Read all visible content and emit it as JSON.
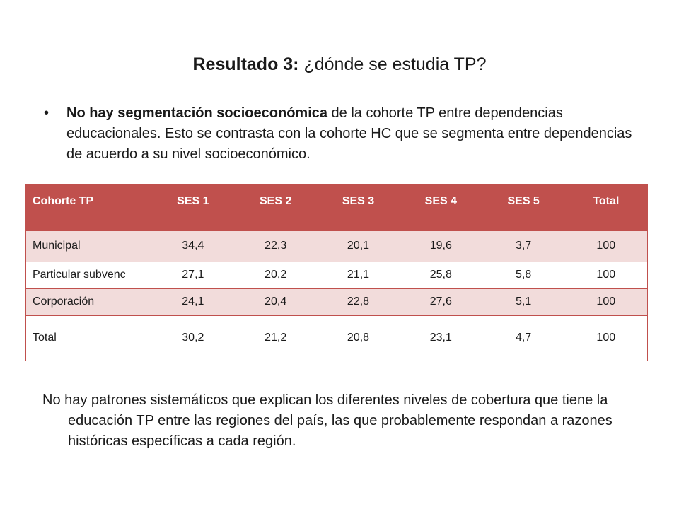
{
  "title": {
    "bold": "Resultado 3:",
    "rest": " ¿dónde se estudia TP?"
  },
  "bullet": {
    "marker": "•",
    "bold": "No hay segmentación socioeconómica",
    "rest": " de la cohorte TP entre dependencias educacionales. Esto se contrasta con la cohorte HC que se segmenta entre dependencias de acuerdo a su nivel socioeconómico."
  },
  "table": {
    "headers": [
      "Cohorte TP",
      "SES 1",
      "SES 2",
      "SES 3",
      "SES 4",
      "SES 5",
      "Total"
    ],
    "rows": [
      [
        "Municipal",
        "34,4",
        "22,3",
        "20,1",
        "19,6",
        "3,7",
        "100"
      ],
      [
        "Particular subvenc",
        "27,1",
        "20,2",
        "21,1",
        "25,8",
        "5,8",
        "100"
      ],
      [
        "Corporación",
        "24,1",
        "20,4",
        "22,8",
        "27,6",
        "5,1",
        "100"
      ],
      [
        "Total",
        "30,2",
        "21,2",
        "20,8",
        "23,1",
        "4,7",
        "100"
      ]
    ]
  },
  "bottom_paragraph": "No hay patrones sistemáticos que explican los diferentes niveles de cobertura que tiene la educación TP entre las regiones del país, las que probablemente respondan a razones históricas específicas a cada región.",
  "colors": {
    "header_bg": "#c0504d",
    "row_band": "#f2dcdb"
  }
}
